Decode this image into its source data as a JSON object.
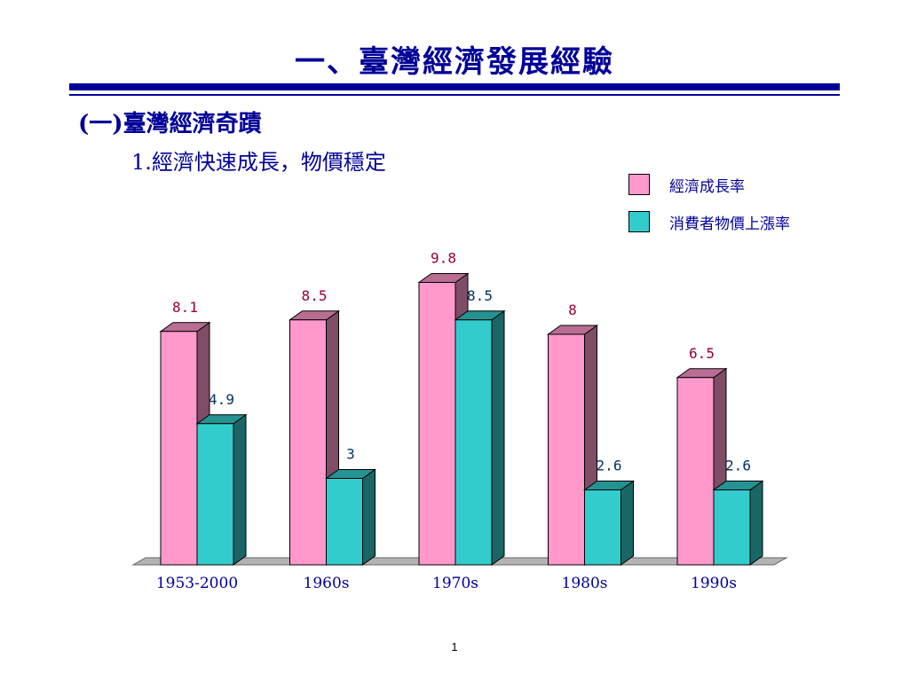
{
  "slide": {
    "title": "一、臺灣經濟發展經驗",
    "section": "(一)臺灣經濟奇蹟",
    "subsection": "1.經濟快速成長，物價穩定",
    "page_number": "1",
    "colors": {
      "accent": "#000099"
    }
  },
  "chart_data": {
    "type": "bar",
    "style": "3d-clustered-column",
    "categories": [
      "1953-2000",
      "1960s",
      "1970s",
      "1980s",
      "1990s"
    ],
    "series": [
      {
        "name": "經濟成長率",
        "values": [
          8.1,
          8.5,
          9.8,
          8,
          6.5
        ],
        "labels": [
          "8.1",
          "8.5",
          "9.8",
          "8",
          "6.5"
        ],
        "color": "#ff99cc",
        "label_color": "#990033"
      },
      {
        "name": "消費者物價上漲率",
        "values": [
          4.9,
          3,
          8.5,
          2.6,
          2.6
        ],
        "labels": [
          "4.9",
          "3",
          "8.5",
          "2.6",
          "2.6"
        ],
        "color": "#33cccc",
        "label_color": "#003366"
      }
    ],
    "title": "",
    "xlabel": "",
    "ylabel": "",
    "ylim": [
      0,
      10
    ],
    "grid": false,
    "legend": "top-right"
  }
}
